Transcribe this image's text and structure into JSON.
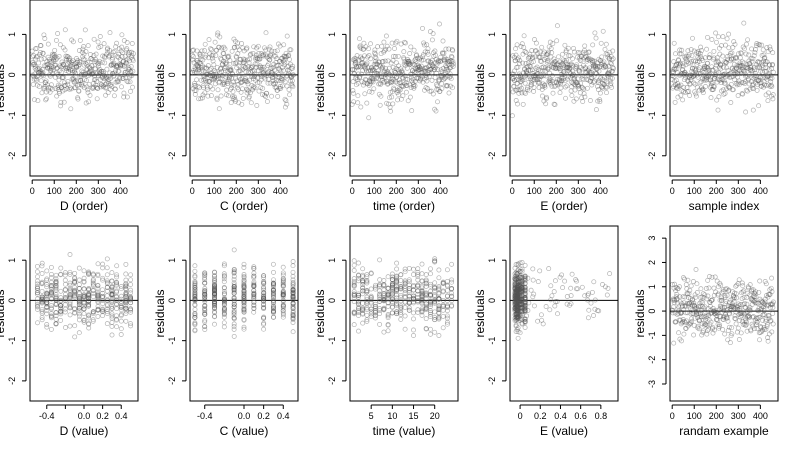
{
  "chart_data": [
    {
      "type": "scatter",
      "xlabel": "D (order)",
      "ylabel": "residuals",
      "xlim": [
        -10,
        480
      ],
      "ylim": [
        -2.5,
        1.85
      ],
      "xticks": [
        0,
        100,
        200,
        300,
        400
      ],
      "yticks": [
        -2,
        -1,
        0,
        1
      ],
      "zero_line": true,
      "x_kind": "index",
      "y_range": [
        -2.3,
        1.8
      ]
    },
    {
      "type": "scatter",
      "xlabel": "C (order)",
      "ylabel": "residuals",
      "xlim": [
        -10,
        480
      ],
      "ylim": [
        -2.5,
        1.85
      ],
      "xticks": [
        0,
        100,
        200,
        300,
        400
      ],
      "yticks": [
        -2,
        -1,
        0,
        1
      ],
      "zero_line": true,
      "x_kind": "index",
      "y_range": [
        -2.3,
        1.8
      ]
    },
    {
      "type": "scatter",
      "xlabel": "time (order)",
      "ylabel": "residuals",
      "xlim": [
        -10,
        480
      ],
      "ylim": [
        -2.5,
        1.85
      ],
      "xticks": [
        0,
        100,
        200,
        300,
        400
      ],
      "yticks": [
        -2,
        -1,
        0,
        1
      ],
      "zero_line": true,
      "x_kind": "index",
      "y_range": [
        -2.3,
        1.8
      ]
    },
    {
      "type": "scatter",
      "xlabel": "E (order)",
      "ylabel": "residuals",
      "xlim": [
        -10,
        480
      ],
      "ylim": [
        -2.5,
        1.85
      ],
      "xticks": [
        0,
        100,
        200,
        300,
        400
      ],
      "yticks": [
        -2,
        -1,
        0,
        1
      ],
      "zero_line": true,
      "x_kind": "index",
      "y_range": [
        -2.3,
        1.8
      ]
    },
    {
      "type": "scatter",
      "xlabel": "sample index",
      "ylabel": "residuals",
      "xlim": [
        -10,
        480
      ],
      "ylim": [
        -2.5,
        1.85
      ],
      "xticks": [
        0,
        100,
        200,
        300,
        400
      ],
      "yticks": [
        -2,
        -1,
        0,
        1
      ],
      "zero_line": true,
      "x_kind": "index",
      "y_range": [
        -2.3,
        1.8
      ]
    },
    {
      "type": "scatter",
      "xlabel": "D (value)",
      "ylabel": "residuals",
      "xlim": [
        -0.58,
        0.58
      ],
      "ylim": [
        -2.5,
        1.85
      ],
      "xticks": [
        -0.4,
        -0.2,
        0.0,
        0.2,
        0.4
      ],
      "xtick_labels": [
        "-0.4",
        "",
        "0.0",
        "0.2",
        "0.4"
      ],
      "yticks": [
        -2,
        -1,
        0,
        1
      ],
      "zero_line": true,
      "x_kind": "columns",
      "x_columns": [
        -0.5,
        -0.45,
        -0.4,
        -0.35,
        -0.3,
        -0.25,
        -0.2,
        -0.15,
        -0.1,
        -0.05,
        0.0,
        0.05,
        0.1,
        0.15,
        0.2,
        0.25,
        0.3,
        0.35,
        0.4,
        0.45,
        0.5
      ],
      "y_range": [
        -2.3,
        1.8
      ]
    },
    {
      "type": "scatter",
      "xlabel": "C (value)",
      "ylabel": "residuals",
      "xlim": [
        -0.55,
        0.55
      ],
      "ylim": [
        -2.5,
        1.85
      ],
      "xticks": [
        -0.4,
        0.0,
        0.2,
        0.4
      ],
      "xtick_labels": [
        "-0.4",
        "0.0",
        "0.2",
        "0.4"
      ],
      "yticks": [
        -2,
        -1,
        0,
        1
      ],
      "zero_line": true,
      "x_kind": "columns",
      "x_columns": [
        -0.5,
        -0.4,
        -0.3,
        -0.2,
        -0.1,
        0.0,
        0.1,
        0.2,
        0.3,
        0.4,
        0.5
      ],
      "y_range": [
        -2.3,
        1.8
      ]
    },
    {
      "type": "scatter",
      "xlabel": "time (value)",
      "ylabel": "residuals",
      "xlim": [
        0,
        25.5
      ],
      "ylim": [
        -2.5,
        1.85
      ],
      "xticks": [
        5,
        10,
        15,
        20
      ],
      "yticks": [
        -2,
        -1,
        0,
        1
      ],
      "zero_line": true,
      "x_kind": "columns",
      "x_columns": [
        1,
        2,
        3,
        4,
        5,
        6,
        7,
        8,
        9,
        10,
        11,
        12,
        13,
        14,
        15,
        16,
        17,
        18,
        19,
        20,
        21,
        22,
        23,
        24
      ],
      "y_range": [
        -2.3,
        1.8
      ]
    },
    {
      "type": "scatter",
      "xlabel": "E (value)",
      "ylabel": "residuals",
      "xlim": [
        -0.1,
        0.97
      ],
      "ylim": [
        -2.5,
        1.85
      ],
      "xticks": [
        0.0,
        0.2,
        0.4,
        0.6,
        0.8
      ],
      "yticks": [
        -2,
        -1,
        0,
        1
      ],
      "zero_line": true,
      "x_kind": "skewed",
      "x_columns": [
        -0.05,
        -0.04,
        -0.03,
        -0.02,
        0.0,
        0.02,
        0.05
      ],
      "y_range": [
        -2.3,
        1.8
      ]
    },
    {
      "type": "scatter",
      "xlabel": "randam example",
      "ylabel": "residuals",
      "xlim": [
        -10,
        480
      ],
      "ylim": [
        -3.7,
        3.5
      ],
      "xticks": [
        0,
        100,
        200,
        300,
        400
      ],
      "yticks": [
        -3,
        -2,
        -1,
        0,
        1,
        2,
        3
      ],
      "zero_line": true,
      "x_kind": "index",
      "y_range": [
        -3.4,
        3.2
      ]
    }
  ]
}
